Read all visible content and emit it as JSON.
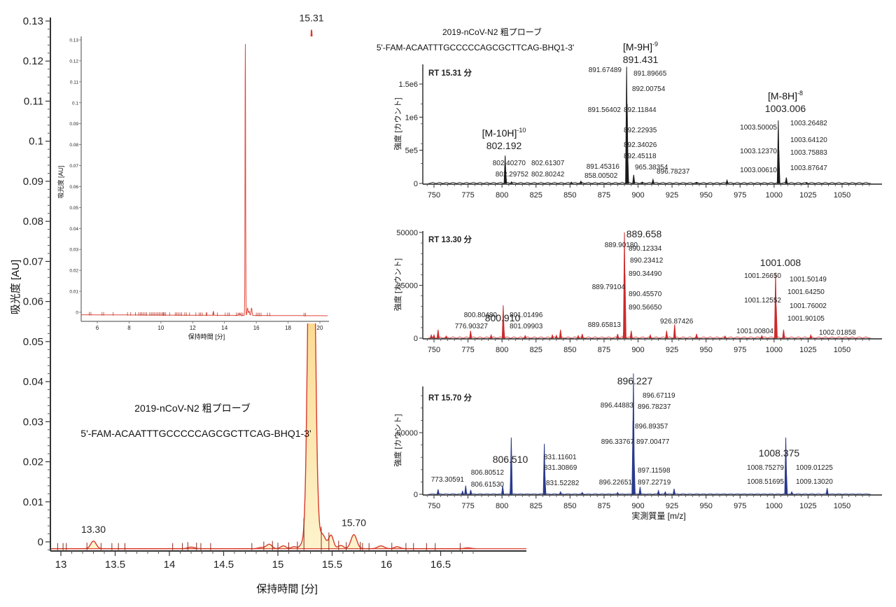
{
  "chart_data": [
    {
      "id": "main",
      "type": "area",
      "title": "",
      "xlabel": "保持時間 [分]",
      "ylabel": "吸光度 [AU]",
      "xlim": [
        12.9,
        16.82
      ],
      "ylim": [
        -0.0023,
        0.13
      ],
      "xticks": [
        13,
        13.5,
        14,
        14.5,
        15,
        15.5,
        16,
        16.5
      ],
      "xtick_labels": [
        "13",
        "13.5",
        "14",
        "14.5",
        "15",
        "15.5",
        "16",
        "16.5"
      ],
      "yticks": [
        0,
        0.01,
        0.02,
        0.03,
        0.04,
        0.05,
        0.06,
        0.07,
        0.08,
        0.09,
        0.1,
        0.11,
        0.12,
        0.13
      ],
      "ytick_labels": [
        "0",
        "0.01",
        "0.02",
        "0.03",
        "0.04",
        "0.05",
        "0.06",
        "0.07",
        "0.08",
        "0.09",
        "0.1",
        "0.11",
        "0.12",
        "0.13"
      ],
      "baseline": -0.0017,
      "peaks": [
        {
          "rt": 13.3,
          "height": 0.0019,
          "width": 0.025
        },
        {
          "rt": 14.2,
          "height": 0.0004,
          "width": 0.03
        },
        {
          "rt": 14.85,
          "height": 0.0003,
          "width": 0.03
        },
        {
          "rt": 14.92,
          "height": 0.0011,
          "width": 0.025
        },
        {
          "rt": 15.05,
          "height": 0.0007,
          "width": 0.025
        },
        {
          "rt": 15.15,
          "height": 0.0005,
          "width": 0.025
        },
        {
          "rt": 15.22,
          "height": 0.0009,
          "width": 0.02
        },
        {
          "rt": 15.31,
          "height": 0.1295,
          "width": 0.028
        },
        {
          "rt": 15.41,
          "height": 0.0035,
          "width": 0.03
        },
        {
          "rt": 15.49,
          "height": 0.0033,
          "width": 0.022
        },
        {
          "rt": 15.58,
          "height": 0.0008,
          "width": 0.025
        },
        {
          "rt": 15.7,
          "height": 0.0035,
          "width": 0.027
        },
        {
          "rt": 15.95,
          "height": 0.0007,
          "width": 0.03
        },
        {
          "rt": 16.1,
          "height": 0.0005,
          "width": 0.025
        },
        {
          "rt": 16.75,
          "height": 0.0002,
          "width": 0.03
        }
      ],
      "peak_labels": [
        {
          "rt": 13.3,
          "label": "13.30"
        },
        {
          "rt": 15.31,
          "label": "15.31"
        },
        {
          "rt": 15.7,
          "label": "15.70"
        }
      ],
      "integration_marks": [
        12.97,
        13.02,
        13.05,
        13.24,
        13.37,
        13.47,
        13.53,
        13.59,
        14.03,
        14.12,
        14.17,
        14.25,
        14.29,
        14.38,
        14.76,
        14.87,
        14.95,
        15.0,
        15.1,
        15.18,
        15.24,
        15.4,
        15.47,
        15.56,
        15.63,
        15.76,
        15.78,
        15.84,
        16.05,
        16.18,
        16.25,
        16.37,
        16.45,
        16.68
      ],
      "annotations": {
        "compound": "2019-nCoV-N2 粗プローブ",
        "sequence": "5'-FAM-ACAATTTGCCCCCAGCGCTTCAG-BHQ1-3'"
      }
    },
    {
      "id": "inset",
      "type": "line",
      "xlabel": "保持時間 [分]",
      "ylabel": "吸光度 [AU]",
      "xlim": [
        5,
        20.5
      ],
      "ylim": [
        -0.0023,
        0.13
      ],
      "xticks": [
        6,
        8,
        10,
        12,
        14,
        16,
        18,
        20
      ],
      "xtick_labels": [
        "6",
        "8",
        "10",
        "12",
        "14",
        "16",
        "18",
        "20"
      ],
      "yticks": [
        0,
        0.01,
        0.02,
        0.03,
        0.04,
        0.05,
        0.06,
        0.07,
        0.08,
        0.09,
        0.1,
        0.11,
        0.12,
        0.13
      ],
      "ytick_labels": [
        "0",
        "0.01",
        "0.02",
        "0.03",
        "0.04",
        "0.05",
        "0.06",
        "0.07",
        "0.08",
        "0.09",
        "0.1",
        "0.11",
        "0.12",
        "0.13"
      ],
      "marks": [
        5.5,
        5.6,
        6.3,
        6.4,
        7.0,
        7.9,
        8.1,
        8.4,
        8.6,
        8.7,
        8.8,
        8.9,
        9.0,
        9.1,
        9.3,
        9.4,
        9.5,
        9.6,
        9.7,
        9.8,
        9.9,
        10.0,
        10.1,
        10.15,
        10.2,
        10.3,
        10.55,
        10.9,
        11.0,
        11.1,
        11.2,
        11.3,
        11.5,
        11.6,
        11.8,
        12.2,
        12.4,
        12.5,
        12.6,
        12.85,
        12.9,
        13.3,
        13.55,
        14.05,
        14.2,
        14.3,
        14.75,
        14.85,
        14.95,
        15.05,
        15.15,
        16.0,
        16.1,
        16.2,
        16.3,
        16.7,
        16.85,
        19.0,
        19.1
      ]
    },
    {
      "id": "ms1",
      "type": "bar",
      "panel_label": "RT 15.31 分",
      "xlabel": "",
      "ylabel": "強度 [カウント]",
      "xlim": [
        745,
        1072
      ],
      "ylim": [
        0,
        1750000
      ],
      "xticks": [
        750,
        775,
        800,
        825,
        850,
        875,
        900,
        925,
        950,
        975,
        1000,
        1025,
        1050
      ],
      "xtick_labels": [
        "750",
        "775",
        "800",
        "825",
        "850",
        "875",
        "900",
        "925",
        "950",
        "975",
        "1000",
        "1025",
        "1050"
      ],
      "yticks": [
        0,
        500000,
        1000000,
        1500000
      ],
      "ytick_labels": [
        "0",
        "5e5",
        "1e6",
        "1.5e6"
      ],
      "color": "#1a1a1a",
      "peaks": [
        {
          "mz": 802.3,
          "intensity": 420000
        },
        {
          "mz": 802.6,
          "intensity": 200000
        },
        {
          "mz": 807.0,
          "intensity": 25000
        },
        {
          "mz": 851.0,
          "intensity": 20000
        },
        {
          "mz": 858.0,
          "intensity": 35000
        },
        {
          "mz": 891.6,
          "intensity": 1760000
        },
        {
          "mz": 892.0,
          "intensity": 1200000
        },
        {
          "mz": 892.3,
          "intensity": 500000
        },
        {
          "mz": 896.8,
          "intensity": 130000
        },
        {
          "mz": 903.0,
          "intensity": 20000
        },
        {
          "mz": 911.0,
          "intensity": 60000
        },
        {
          "mz": 943.0,
          "intensity": 15000
        },
        {
          "mz": 965.4,
          "intensity": 50000
        },
        {
          "mz": 1003.1,
          "intensity": 950000
        },
        {
          "mz": 1003.5,
          "intensity": 500000
        },
        {
          "mz": 1009.0,
          "intensity": 90000
        },
        {
          "mz": 1024.0,
          "intensity": 15000
        }
      ],
      "peak_annotations": [
        "802.40270",
        "802.61307",
        "802.29752",
        "802.80242",
        "858.00502",
        "891.67489",
        "891.89665",
        "892.00754",
        "891.56402",
        "892.11844",
        "892.22935",
        "892.34026",
        "892.45118",
        "891.45316",
        "896.78237",
        "965.38354",
        "1003.26482",
        "1003.50005",
        "1003.64120",
        "1003.12370",
        "1003.75883",
        "1003.00610",
        "1003.87647"
      ],
      "ion_labels": [
        {
          "ion": "[M-10H]",
          "charge": "-10",
          "mz": "802.192"
        },
        {
          "ion": "[M-9H]",
          "charge": "-9",
          "mz": "891.431"
        },
        {
          "ion": "[M-8H]",
          "charge": "-8",
          "mz": "1003.006"
        }
      ],
      "ion_label_color": "#2e7fb8",
      "annotations": {
        "compound": "2019-nCoV-N2 粗プローブ",
        "sequence": "5'-FAM-ACAATTTGCCCCCAGCGCTTCAG-BHQ1-3'"
      }
    },
    {
      "id": "ms2",
      "type": "bar",
      "panel_label": "RT 13.30 分",
      "xlabel": "",
      "ylabel": "強度 [カウント]",
      "xlim": [
        745,
        1072
      ],
      "ylim": [
        0,
        50000
      ],
      "xticks": [
        750,
        775,
        800,
        825,
        850,
        875,
        900,
        925,
        950,
        975,
        1000,
        1025,
        1050
      ],
      "xtick_labels": [
        "750",
        "775",
        "800",
        "825",
        "850",
        "875",
        "900",
        "925",
        "950",
        "975",
        "1000",
        "1025",
        "1050"
      ],
      "yticks": [
        0,
        25000,
        50000
      ],
      "ytick_labels": [
        "0",
        "25000",
        "50000"
      ],
      "color": "#cc2b2b",
      "peaks": [
        {
          "mz": 748,
          "intensity": 1500
        },
        {
          "mz": 750,
          "intensity": 1500
        },
        {
          "mz": 753,
          "intensity": 4000
        },
        {
          "mz": 759,
          "intensity": 1000
        },
        {
          "mz": 776.9,
          "intensity": 3500
        },
        {
          "mz": 792,
          "intensity": 1500
        },
        {
          "mz": 800.9,
          "intensity": 15500
        },
        {
          "mz": 801.2,
          "intensity": 6000
        },
        {
          "mz": 817,
          "intensity": 1200
        },
        {
          "mz": 837,
          "intensity": 1500
        },
        {
          "mz": 840,
          "intensity": 1300
        },
        {
          "mz": 843,
          "intensity": 4000
        },
        {
          "mz": 856,
          "intensity": 1200
        },
        {
          "mz": 859,
          "intensity": 2000
        },
        {
          "mz": 885,
          "intensity": 2000
        },
        {
          "mz": 889.66,
          "intensity": 4500
        },
        {
          "mz": 890.0,
          "intensity": 50000
        },
        {
          "mz": 890.4,
          "intensity": 30000
        },
        {
          "mz": 895,
          "intensity": 3500
        },
        {
          "mz": 909,
          "intensity": 1500
        },
        {
          "mz": 921,
          "intensity": 3500
        },
        {
          "mz": 926.9,
          "intensity": 6500
        },
        {
          "mz": 943,
          "intensity": 2000
        },
        {
          "mz": 964,
          "intensity": 1000
        },
        {
          "mz": 991,
          "intensity": 1200
        },
        {
          "mz": 1001.1,
          "intensity": 31000
        },
        {
          "mz": 1001.6,
          "intensity": 15000
        },
        {
          "mz": 1007,
          "intensity": 4000
        },
        {
          "mz": 1027,
          "intensity": 1500
        }
      ],
      "peak_annotations": [
        "889.90180",
        "890.12334",
        "890.23412",
        "890.34490",
        "889.79104",
        "890.45570",
        "890.56650",
        "889.65813",
        "800.80480",
        "801.01496",
        "776.90327",
        "801.09903",
        "926.87426",
        "1001.26650",
        "1001.50149",
        "1001.64250",
        "1001.12552",
        "1001.76002",
        "1001.90105",
        "1001.00804",
        "1002.01858"
      ],
      "ion_labels": [
        {
          "mz": "800.910"
        },
        {
          "mz": "889.658"
        },
        {
          "mz": "1001.008"
        }
      ],
      "ion_label_color": "#c0303a"
    },
    {
      "id": "ms3",
      "type": "bar",
      "panel_label": "RT 15.70 分",
      "xlabel": "実測質量 [m/z]",
      "ylabel": "強度 [カウント]",
      "xlim": [
        745,
        1072
      ],
      "ylim": [
        0,
        100000
      ],
      "xticks": [
        750,
        775,
        800,
        825,
        850,
        875,
        900,
        925,
        950,
        975,
        1000,
        1025,
        1050
      ],
      "xtick_labels": [
        "750",
        "775",
        "800",
        "825",
        "850",
        "875",
        "900",
        "925",
        "950",
        "975",
        "1000",
        "1025",
        "1050"
      ],
      "yticks": [
        0,
        50000
      ],
      "ytick_labels": [
        "0",
        "50000"
      ],
      "color": "#2b3a8c",
      "peaks": [
        {
          "mz": 753,
          "intensity": 4000
        },
        {
          "mz": 771,
          "intensity": 2500
        },
        {
          "mz": 773.3,
          "intensity": 7000
        },
        {
          "mz": 777,
          "intensity": 3500
        },
        {
          "mz": 800.5,
          "intensity": 7000
        },
        {
          "mz": 806.6,
          "intensity": 15000
        },
        {
          "mz": 806.8,
          "intensity": 46000
        },
        {
          "mz": 831.1,
          "intensity": 41000
        },
        {
          "mz": 831.5,
          "intensity": 16000
        },
        {
          "mz": 843,
          "intensity": 2000
        },
        {
          "mz": 859,
          "intensity": 1500
        },
        {
          "mz": 885,
          "intensity": 1500
        },
        {
          "mz": 896.3,
          "intensity": 60000
        },
        {
          "mz": 896.6,
          "intensity": 98000
        },
        {
          "mz": 897.1,
          "intensity": 30000
        },
        {
          "mz": 901.5,
          "intensity": 6000
        },
        {
          "mz": 915,
          "intensity": 3000
        },
        {
          "mz": 920,
          "intensity": 2000
        },
        {
          "mz": 926.5,
          "intensity": 4500
        },
        {
          "mz": 1008.6,
          "intensity": 46000
        },
        {
          "mz": 1009.0,
          "intensity": 20000
        },
        {
          "mz": 1013,
          "intensity": 2000
        },
        {
          "mz": 1039,
          "intensity": 5000
        }
      ],
      "peak_annotations": [
        "896.67119",
        "896.44883",
        "896.78237",
        "896.89357",
        "896.33767",
        "897.00477",
        "897.11598",
        "896.22651",
        "897.22719",
        "831.11601",
        "831.30869",
        "831.52282",
        "806.80512",
        "806.61530",
        "773.30591",
        "1008.75279",
        "1009.01225",
        "1008.51695",
        "1009.13020"
      ],
      "ion_labels": [
        {
          "mz": "806.510"
        },
        {
          "mz": "896.227"
        },
        {
          "mz": "1008.375"
        }
      ],
      "ion_label_color": "#2eaa55"
    }
  ],
  "colors": {
    "main_line": "#d93a2b",
    "main_fill_top": "#f7b04a",
    "main_fill_bottom": "#fdf1c4",
    "axis": "#333333"
  }
}
